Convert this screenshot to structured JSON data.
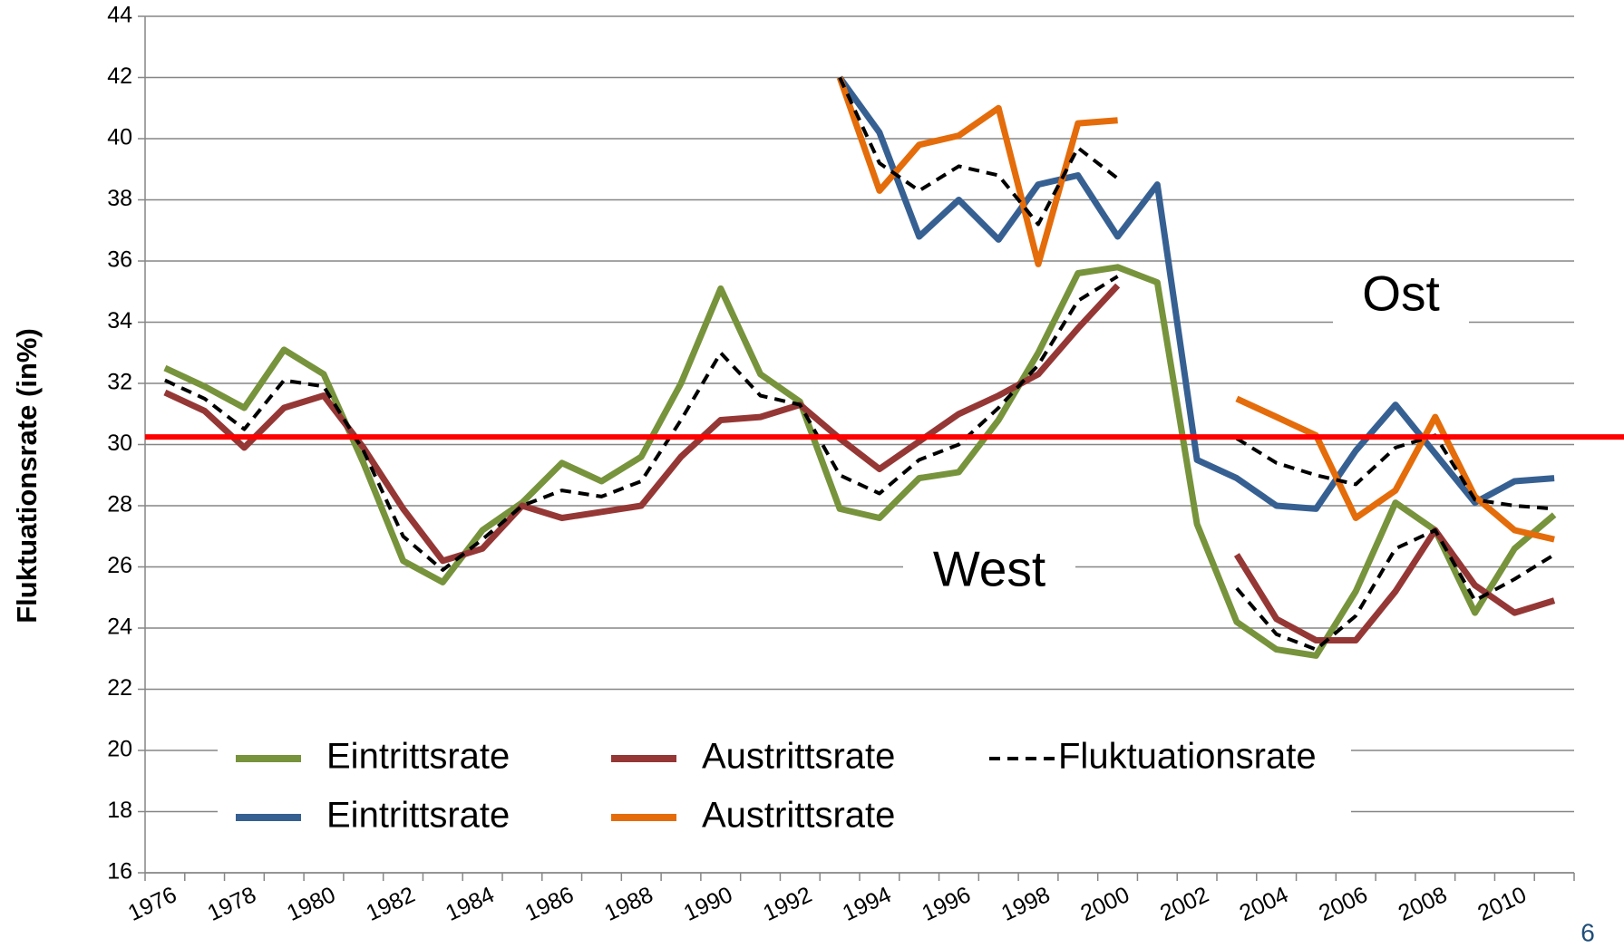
{
  "chart_data": {
    "type": "line",
    "ylabel": "Fluktuationsrate (in%)",
    "categories": [
      "1976",
      null,
      "1978",
      null,
      "1980",
      null,
      "1982",
      null,
      "1984",
      null,
      "1986",
      null,
      "1988",
      null,
      "1990",
      null,
      "1992",
      null,
      "1994",
      null,
      "1996",
      null,
      "1998",
      null,
      "2000",
      null,
      "2002",
      null,
      "2004",
      null,
      "2006",
      null,
      "2008",
      null,
      "2010",
      null
    ],
    "series": [
      {
        "name": "Eintrittsrate",
        "color": "#77933c",
        "values": [
          32.5,
          31.9,
          31.2,
          33.1,
          32.3,
          29.4,
          26.2,
          25.5,
          27.2,
          28.1,
          29.4,
          28.8,
          29.6,
          32.0,
          35.1,
          32.3,
          31.4,
          27.9,
          27.6,
          28.9,
          29.1,
          30.8,
          33.0,
          35.6,
          35.8,
          35.3,
          27.4,
          24.2,
          23.3,
          23.1,
          25.2,
          28.1,
          27.2,
          24.5,
          26.6,
          27.7
        ]
      },
      {
        "name": "Eintrittsrate",
        "color": "#376092",
        "values": [
          null,
          null,
          null,
          null,
          null,
          null,
          null,
          null,
          null,
          null,
          null,
          null,
          null,
          null,
          null,
          null,
          null,
          42.0,
          40.2,
          36.8,
          38.0,
          36.7,
          38.5,
          38.8,
          36.8,
          38.5,
          29.5,
          28.9,
          28.0,
          27.9,
          29.8,
          31.3,
          29.7,
          28.1,
          28.8,
          28.9
        ]
      },
      {
        "name": "Austrittsrate",
        "color": "#953735",
        "values": [
          31.7,
          31.1,
          29.9,
          31.2,
          31.6,
          29.9,
          27.9,
          26.2,
          26.6,
          28.0,
          27.6,
          27.8,
          28.0,
          29.6,
          30.8,
          30.9,
          31.3,
          30.2,
          29.2,
          30.1,
          31.0,
          31.6,
          32.3,
          33.8,
          35.2,
          null,
          null,
          26.4,
          24.3,
          23.6,
          23.6,
          25.2,
          27.2,
          25.4,
          24.5,
          24.9
        ]
      },
      {
        "name": "Austrittsrate",
        "color": "#e46c0a",
        "values": [
          null,
          null,
          null,
          null,
          null,
          null,
          null,
          null,
          null,
          null,
          null,
          null,
          null,
          null,
          null,
          null,
          null,
          42.0,
          38.3,
          39.8,
          40.1,
          41.0,
          35.9,
          40.5,
          40.6,
          null,
          null,
          31.5,
          30.9,
          30.3,
          27.6,
          28.5,
          30.9,
          28.3,
          27.2,
          26.9
        ]
      },
      {
        "name": "Fluktuationsrate",
        "color": "#000000",
        "dashed": true,
        "values": [
          32.1,
          31.5,
          30.5,
          32.1,
          31.9,
          29.8,
          27.0,
          25.9,
          26.9,
          28.0,
          28.5,
          28.3,
          28.8,
          30.8,
          33.0,
          31.6,
          31.3,
          29.0,
          28.4,
          29.5,
          30.0,
          31.2,
          32.6,
          34.7,
          35.5,
          null,
          null,
          25.3,
          23.8,
          23.3,
          24.4,
          26.6,
          27.2,
          24.9,
          25.6,
          26.4
        ]
      },
      {
        "color": "#000000",
        "dashed": true,
        "values": [
          null,
          null,
          null,
          null,
          null,
          null,
          null,
          null,
          null,
          null,
          null,
          null,
          null,
          null,
          null,
          null,
          null,
          42.0,
          39.2,
          38.3,
          39.1,
          38.8,
          37.2,
          39.7,
          38.7,
          null,
          null,
          30.2,
          29.4,
          29.0,
          28.7,
          29.9,
          30.3,
          28.2,
          28.0,
          27.9
        ]
      }
    ],
    "hline": {
      "value": 30.25,
      "color": "#ff0000"
    },
    "annotations": [
      "West",
      "Ost"
    ],
    "page_number": "6",
    "ylim": [
      16,
      44
    ],
    "yticks": [
      16,
      18,
      20,
      22,
      24,
      26,
      28,
      30,
      32,
      34,
      36,
      38,
      40,
      42,
      44
    ],
    "grid": true
  }
}
